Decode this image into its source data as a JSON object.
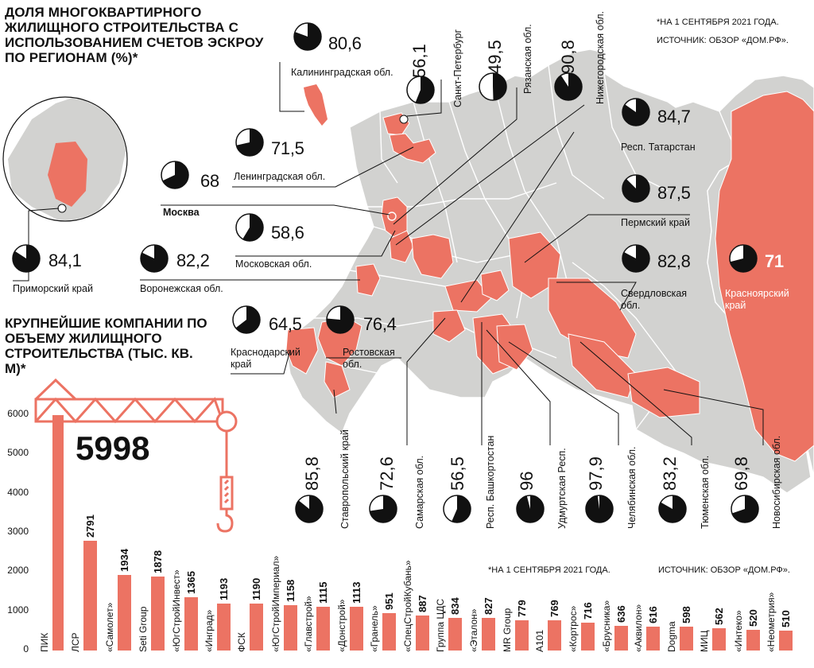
{
  "map_section": {
    "title": "Доля многоквартирного жилищного строительства с использованием счетов эскроу по регионам (%)*",
    "note": "*На 1 сентября 2021 года.",
    "source": "Источник: обзор «Дом.РФ».",
    "colors": {
      "highlight": "#ec7363",
      "land": "#d2d2d0",
      "pie": "#111111"
    }
  },
  "chart_data": [
    {
      "type": "pie",
      "title": "",
      "unit": "%",
      "regions": [
        {
          "name": "Калининградская обл.",
          "value": 80.6,
          "label": "80,6"
        },
        {
          "name": "Санкт-Петербург",
          "value": 56.1,
          "label": "56,1"
        },
        {
          "name": "Рязанская обл.",
          "value": 49.5,
          "label": "49,5"
        },
        {
          "name": "Нижегородская обл.",
          "value": 90.8,
          "label": "90,8"
        },
        {
          "name": "Ленинградская обл.",
          "value": 71.5,
          "label": "71,5"
        },
        {
          "name": "Москва",
          "value": 68,
          "label": "68"
        },
        {
          "name": "Московская обл.",
          "value": 58.6,
          "label": "58,6"
        },
        {
          "name": "Приморский край",
          "value": 84.1,
          "label": "84,1"
        },
        {
          "name": "Воронежская обл.",
          "value": 82.2,
          "label": "82,2"
        },
        {
          "name": "Респ. Татарстан",
          "value": 84.7,
          "label": "84,7"
        },
        {
          "name": "Пермский край",
          "value": 87.5,
          "label": "87,5"
        },
        {
          "name": "Свердловская обл.",
          "value": 82.8,
          "label": "82,8"
        },
        {
          "name": "Красноярский край",
          "value": 71,
          "label": "71"
        },
        {
          "name": "Краснодарский край",
          "value": 64.5,
          "label": "64,5"
        },
        {
          "name": "Ростовская обл.",
          "value": 76.4,
          "label": "76,4"
        },
        {
          "name": "Ставропольский край",
          "value": 85.8,
          "label": "85,8"
        },
        {
          "name": "Самарская обл.",
          "value": 72.6,
          "label": "72,6"
        },
        {
          "name": "Респ. Башкортостан",
          "value": 56.5,
          "label": "56,5"
        },
        {
          "name": "Удмуртская Респ.",
          "value": 96,
          "label": "96"
        },
        {
          "name": "Челябинская обл.",
          "value": 97.9,
          "label": "97,9"
        },
        {
          "name": "Тюменская обл.",
          "value": 83.2,
          "label": "83,2"
        },
        {
          "name": "Новосибирская обл.",
          "value": 69.8,
          "label": "69,8"
        }
      ]
    },
    {
      "type": "bar",
      "title": "Крупнейшие компании по объему жилищного строительства (тыс. кв. м)*",
      "note": "*На 1 сентября 2021 года.",
      "source": "Источник: обзор «Дом.РФ».",
      "ylim": [
        0,
        6000
      ],
      "yticks": [
        0,
        1000,
        2000,
        3000,
        4000,
        5000,
        6000
      ],
      "categories": [
        "ПИК",
        "ЛСР",
        "«Самолет»",
        "Seti Group",
        "«ЮгСтройИнвест»",
        "«Инград»",
        "ФСК",
        "«ЮгСтройИмпериал»",
        "«Главстрой»",
        "«Донстрой»",
        "«Гранель»",
        "«СпецСтройКубань»",
        "Группа ЦДС",
        "«Эталон»",
        "MR Group",
        "А101",
        "«Кортрос»",
        "«Брусника»",
        "«Аквилон»",
        "Dogma",
        "МИЦ",
        "«Интеко»",
        "«Неометрия»"
      ],
      "values": [
        5998,
        2791,
        1934,
        1878,
        1365,
        1193,
        1190,
        1158,
        1115,
        1113,
        951,
        887,
        834,
        827,
        779,
        769,
        716,
        636,
        616,
        598,
        562,
        520,
        510
      ],
      "value_labels": [
        "5998",
        "2791",
        "1934",
        "1878",
        "1365",
        "1193",
        "1190",
        "1158",
        "1115",
        "1113",
        "951",
        "887",
        "834",
        "827",
        "779",
        "769",
        "716",
        "636",
        "616",
        "598",
        "562",
        "520",
        "510"
      ],
      "bar_color": "#ec7363"
    }
  ]
}
